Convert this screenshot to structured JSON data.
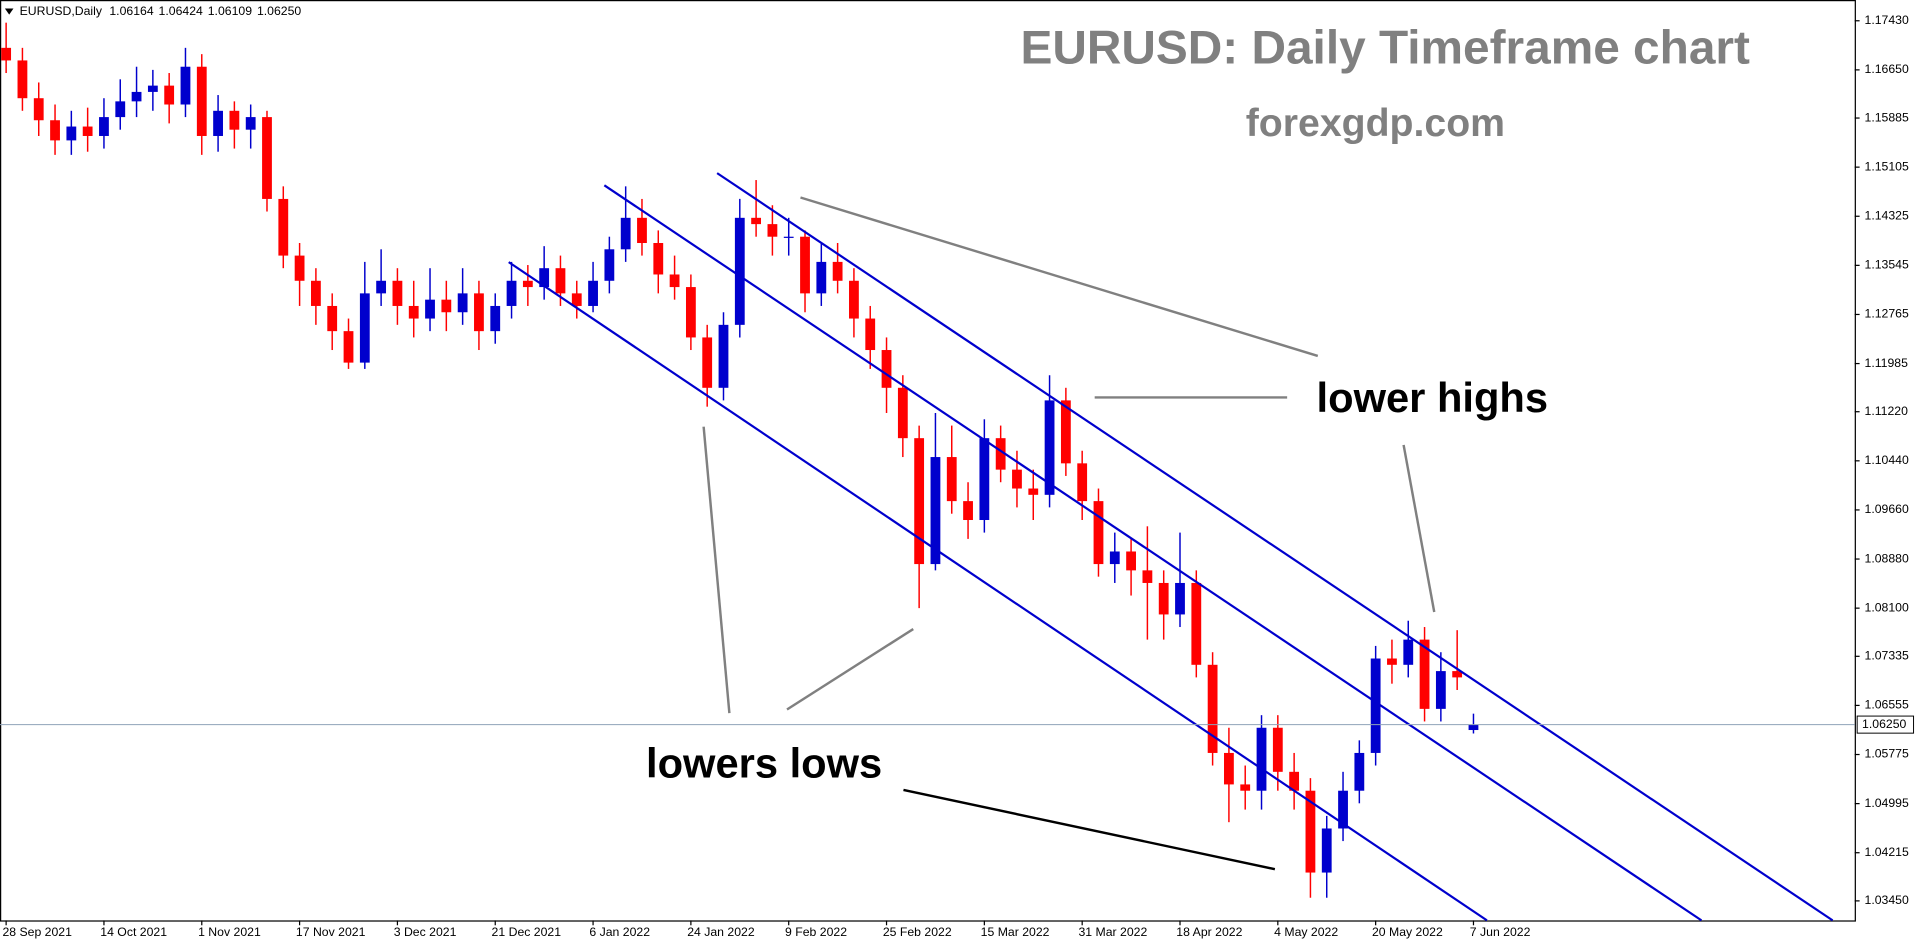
{
  "chart_data": {
    "type": "candlestick",
    "title": "EURUSD: Daily Timeframe chart",
    "subtitle": "forexgdp.com",
    "info": {
      "symbol": "EURUSD,Daily",
      "labels": [
        "1.06164",
        "1.06424",
        "1.06109",
        "1.06250"
      ]
    },
    "annotations": [
      "lower highs",
      "lowers lows"
    ],
    "colors": {
      "up": "#0000cd",
      "down": "#ff0000"
    },
    "ylim": [
      1.0314,
      1.1776
    ],
    "yticks": [
      {
        "value": 1.1743,
        "label": "1.17430"
      },
      {
        "value": 1.1665,
        "label": "1.16650"
      },
      {
        "value": 1.15885,
        "label": "1.15885"
      },
      {
        "value": 1.15105,
        "label": "1.15105"
      },
      {
        "value": 1.14325,
        "label": "1.14325"
      },
      {
        "value": 1.13545,
        "label": "1.13545"
      },
      {
        "value": 1.12765,
        "label": "1.12765"
      },
      {
        "value": 1.11985,
        "label": "1.11985"
      },
      {
        "value": 1.1122,
        "label": "1.11220"
      },
      {
        "value": 1.1044,
        "label": "1.10440"
      },
      {
        "value": 1.0966,
        "label": "1.09660"
      },
      {
        "value": 1.0888,
        "label": "1.08880"
      },
      {
        "value": 1.081,
        "label": "1.08100"
      },
      {
        "value": 1.07335,
        "label": "1.07335"
      },
      {
        "value": 1.06555,
        "label": "1.06555"
      },
      {
        "value": 1.05775,
        "label": "1.05775"
      },
      {
        "value": 1.04995,
        "label": "1.04995"
      },
      {
        "value": 1.04215,
        "label": "1.04215"
      },
      {
        "value": 1.0345,
        "label": "1.03450"
      }
    ],
    "current_price": {
      "value": 1.0625,
      "label": "1.06250"
    },
    "categories": [
      "28 Sep 2021",
      null,
      null,
      null,
      null,
      null,
      "14 Oct 2021",
      null,
      null,
      null,
      null,
      null,
      "1 Nov 2021",
      null,
      null,
      null,
      null,
      null,
      "17 Nov 2021",
      null,
      null,
      null,
      null,
      null,
      "3 Dec 2021",
      null,
      null,
      null,
      null,
      null,
      "21 Dec 2021",
      null,
      null,
      null,
      null,
      null,
      "6 Jan 2022",
      null,
      null,
      null,
      null,
      null,
      "24 Jan 2022",
      null,
      null,
      null,
      null,
      null,
      "9 Feb 2022",
      null,
      null,
      null,
      null,
      null,
      "25 Feb 2022",
      null,
      null,
      null,
      null,
      null,
      "15 Mar 2022",
      null,
      null,
      null,
      null,
      null,
      "31 Mar 2022",
      null,
      null,
      null,
      null,
      null,
      "18 Apr 2022",
      null,
      null,
      null,
      null,
      null,
      "4 May 2022",
      null,
      null,
      null,
      null,
      null,
      "20 May 2022",
      null,
      null,
      null,
      null,
      null,
      "7 Jun 2022"
    ],
    "ohlc": [
      [
        1.17,
        1.174,
        1.166,
        1.168
      ],
      [
        1.168,
        1.17,
        1.16,
        1.162
      ],
      [
        1.162,
        1.1645,
        1.156,
        1.1585
      ],
      [
        1.1585,
        1.161,
        1.153,
        1.1553
      ],
      [
        1.1553,
        1.16,
        1.153,
        1.1575
      ],
      [
        1.1575,
        1.1605,
        1.1535,
        1.156
      ],
      [
        1.156,
        1.162,
        1.154,
        1.159
      ],
      [
        1.159,
        1.165,
        1.157,
        1.1615
      ],
      [
        1.1615,
        1.167,
        1.159,
        1.163
      ],
      [
        1.163,
        1.1665,
        1.16,
        1.164
      ],
      [
        1.164,
        1.166,
        1.158,
        1.161
      ],
      [
        1.161,
        1.17,
        1.159,
        1.167
      ],
      [
        1.167,
        1.169,
        1.153,
        1.156
      ],
      [
        1.156,
        1.1625,
        1.1535,
        1.16
      ],
      [
        1.16,
        1.1615,
        1.154,
        1.157
      ],
      [
        1.157,
        1.161,
        1.154,
        1.159
      ],
      [
        1.159,
        1.16,
        1.144,
        1.146
      ],
      [
        1.146,
        1.148,
        1.135,
        1.137
      ],
      [
        1.137,
        1.139,
        1.129,
        1.133
      ],
      [
        1.133,
        1.135,
        1.126,
        1.129
      ],
      [
        1.129,
        1.131,
        1.122,
        1.125
      ],
      [
        1.125,
        1.127,
        1.119,
        1.12
      ],
      [
        1.12,
        1.136,
        1.119,
        1.131
      ],
      [
        1.131,
        1.138,
        1.129,
        1.133
      ],
      [
        1.133,
        1.135,
        1.126,
        1.129
      ],
      [
        1.129,
        1.133,
        1.124,
        1.127
      ],
      [
        1.127,
        1.135,
        1.125,
        1.13
      ],
      [
        1.13,
        1.133,
        1.125,
        1.128
      ],
      [
        1.128,
        1.135,
        1.126,
        1.131
      ],
      [
        1.131,
        1.133,
        1.122,
        1.125
      ],
      [
        1.125,
        1.131,
        1.123,
        1.129
      ],
      [
        1.129,
        1.136,
        1.127,
        1.133
      ],
      [
        1.133,
        1.1355,
        1.129,
        1.132
      ],
      [
        1.132,
        1.1385,
        1.13,
        1.135
      ],
      [
        1.135,
        1.137,
        1.129,
        1.131
      ],
      [
        1.131,
        1.133,
        1.127,
        1.129
      ],
      [
        1.129,
        1.136,
        1.128,
        1.133
      ],
      [
        1.133,
        1.14,
        1.131,
        1.138
      ],
      [
        1.138,
        1.148,
        1.136,
        1.143
      ],
      [
        1.143,
        1.146,
        1.137,
        1.139
      ],
      [
        1.139,
        1.141,
        1.131,
        1.134
      ],
      [
        1.134,
        1.137,
        1.13,
        1.132
      ],
      [
        1.132,
        1.134,
        1.122,
        1.124
      ],
      [
        1.124,
        1.126,
        1.113,
        1.116
      ],
      [
        1.116,
        1.128,
        1.114,
        1.126
      ],
      [
        1.126,
        1.146,
        1.124,
        1.143
      ],
      [
        1.143,
        1.149,
        1.14,
        1.142
      ],
      [
        1.142,
        1.145,
        1.137,
        1.14
      ],
      [
        1.14,
        1.143,
        1.137,
        1.14
      ],
      [
        1.14,
        1.141,
        1.128,
        1.131
      ],
      [
        1.131,
        1.139,
        1.129,
        1.136
      ],
      [
        1.136,
        1.139,
        1.131,
        1.133
      ],
      [
        1.133,
        1.135,
        1.124,
        1.127
      ],
      [
        1.127,
        1.129,
        1.119,
        1.122
      ],
      [
        1.122,
        1.124,
        1.112,
        1.116
      ],
      [
        1.116,
        1.118,
        1.105,
        1.108
      ],
      [
        1.108,
        1.11,
        1.081,
        1.088
      ],
      [
        1.088,
        1.112,
        1.087,
        1.105
      ],
      [
        1.105,
        1.11,
        1.096,
        1.098
      ],
      [
        1.098,
        1.101,
        1.092,
        1.095
      ],
      [
        1.095,
        1.111,
        1.093,
        1.108
      ],
      [
        1.108,
        1.11,
        1.101,
        1.103
      ],
      [
        1.103,
        1.106,
        1.097,
        1.1
      ],
      [
        1.1,
        1.103,
        1.095,
        1.099
      ],
      [
        1.099,
        1.118,
        1.097,
        1.114
      ],
      [
        1.114,
        1.116,
        1.102,
        1.104
      ],
      [
        1.104,
        1.106,
        1.095,
        1.098
      ],
      [
        1.098,
        1.1,
        1.086,
        1.088
      ],
      [
        1.088,
        1.093,
        1.085,
        1.09
      ],
      [
        1.09,
        1.092,
        1.083,
        1.087
      ],
      [
        1.087,
        1.094,
        1.076,
        1.085
      ],
      [
        1.085,
        1.087,
        1.076,
        1.08
      ],
      [
        1.08,
        1.093,
        1.078,
        1.085
      ],
      [
        1.085,
        1.087,
        1.07,
        1.072
      ],
      [
        1.072,
        1.074,
        1.056,
        1.058
      ],
      [
        1.058,
        1.062,
        1.047,
        1.053
      ],
      [
        1.053,
        1.056,
        1.049,
        1.052
      ],
      [
        1.052,
        1.064,
        1.049,
        1.062
      ],
      [
        1.062,
        1.064,
        1.052,
        1.055
      ],
      [
        1.055,
        1.058,
        1.049,
        1.052
      ],
      [
        1.052,
        1.054,
        1.035,
        1.039
      ],
      [
        1.039,
        1.048,
        1.035,
        1.046
      ],
      [
        1.046,
        1.055,
        1.044,
        1.052
      ],
      [
        1.052,
        1.06,
        1.05,
        1.058
      ],
      [
        1.058,
        1.075,
        1.056,
        1.073
      ],
      [
        1.073,
        1.076,
        1.069,
        1.072
      ],
      [
        1.072,
        1.079,
        1.07,
        1.076
      ],
      [
        1.076,
        1.078,
        1.063,
        1.065
      ],
      [
        1.065,
        1.074,
        1.063,
        1.071
      ],
      [
        1.071,
        1.0775,
        1.068,
        1.07
      ],
      [
        1.06164,
        1.06424,
        1.06109,
        1.0625
      ]
    ]
  }
}
